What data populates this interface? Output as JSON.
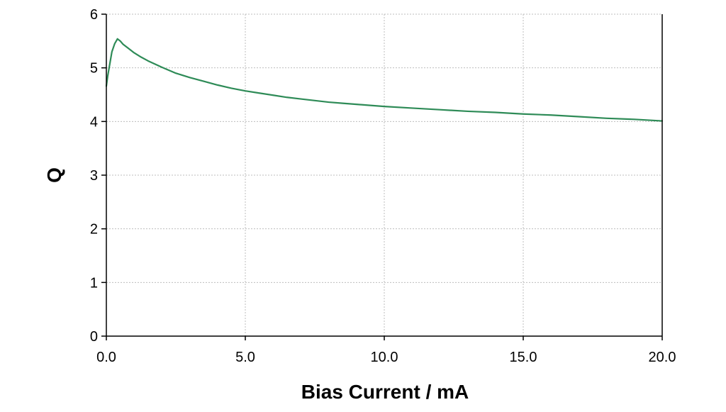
{
  "chart_data": {
    "type": "line",
    "title": "",
    "xlabel": "Bias Current / mA",
    "ylabel": "Q",
    "xlim": [
      0,
      20
    ],
    "ylim": [
      0,
      6
    ],
    "x_ticks": [
      0,
      5,
      10,
      15,
      20
    ],
    "x_tick_labels": [
      "0.0",
      "5.0",
      "10.0",
      "15.0",
      "20.0"
    ],
    "y_ticks": [
      0,
      1,
      2,
      3,
      4,
      5,
      6
    ],
    "y_tick_labels": [
      "0",
      "1",
      "2",
      "3",
      "4",
      "5",
      "6"
    ],
    "grid": true,
    "legend": "none",
    "series": [
      {
        "color": "#2e8b57",
        "x": [
          0.0,
          0.05,
          0.1,
          0.2,
          0.3,
          0.4,
          0.5,
          0.6,
          0.8,
          1.0,
          1.25,
          1.5,
          2.0,
          2.5,
          3.0,
          3.5,
          4.0,
          4.5,
          5.0,
          5.5,
          6.0,
          6.5,
          7.0,
          7.5,
          8.0,
          8.5,
          9.0,
          9.5,
          10.0,
          11.0,
          12.0,
          13.0,
          14.0,
          15.0,
          16.0,
          17.0,
          18.0,
          19.0,
          20.0
        ],
        "y": [
          4.66,
          4.85,
          5.0,
          5.3,
          5.45,
          5.54,
          5.5,
          5.44,
          5.36,
          5.28,
          5.2,
          5.13,
          5.01,
          4.9,
          4.82,
          4.75,
          4.68,
          4.62,
          4.57,
          4.53,
          4.49,
          4.45,
          4.42,
          4.39,
          4.36,
          4.34,
          4.32,
          4.3,
          4.28,
          4.25,
          4.22,
          4.19,
          4.17,
          4.14,
          4.12,
          4.09,
          4.06,
          4.04,
          4.01
        ]
      }
    ]
  }
}
